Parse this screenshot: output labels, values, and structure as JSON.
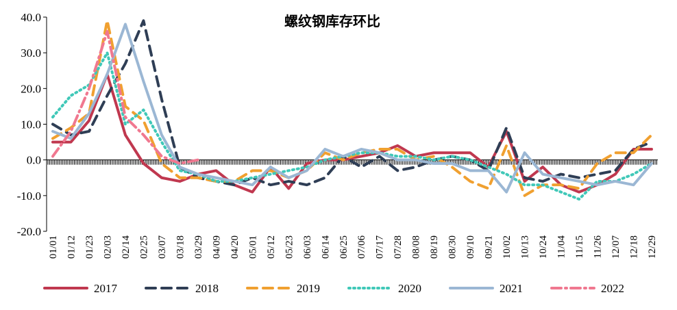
{
  "chart_data": {
    "type": "line",
    "title": "螺纹钢库存环比",
    "xlabel": "",
    "ylabel": "",
    "ylim": [
      -20,
      40
    ],
    "yticks": [
      "40.0",
      "30.0",
      "20.0",
      "10.0",
      "0.0",
      "-10.0",
      "-20.0"
    ],
    "ytick_values": [
      40,
      30,
      20,
      10,
      0,
      -10,
      -20
    ],
    "x_tick_labels": [
      "01/01",
      "01/12",
      "01/23",
      "02/03",
      "02/14",
      "02/25",
      "03/07",
      "03/18",
      "03/29",
      "04/09",
      "04/20",
      "05/01",
      "05/12",
      "05/23",
      "06/03",
      "06/14",
      "06/25",
      "07/06",
      "07/17",
      "07/28",
      "08/08",
      "08/19",
      "08/30",
      "09/10",
      "09/21",
      "10/02",
      "10/13",
      "10/24",
      "11/04",
      "11/15",
      "11/26",
      "12/07",
      "12/18",
      "12/29"
    ],
    "grid": false,
    "legend_position": "bottom",
    "series": [
      {
        "name": "2017",
        "color": "#c0384f",
        "dash": "solid",
        "x": [
          0,
          1,
          2,
          3,
          4,
          5,
          6,
          7,
          8,
          9,
          10,
          11,
          12,
          13,
          14,
          15,
          16,
          17,
          18,
          19,
          20,
          21,
          22,
          23,
          24,
          25,
          26,
          27,
          28,
          29,
          30,
          31,
          32,
          33
        ],
        "values": [
          5,
          5,
          11,
          24,
          7,
          -1,
          -5,
          -6,
          -4,
          -3,
          -7,
          -9,
          -2,
          -8,
          -1,
          0,
          0,
          1,
          2,
          4,
          1,
          2,
          2,
          2,
          -2,
          8,
          -6,
          -2,
          -7,
          -9,
          -7,
          -4,
          3,
          3
        ]
      },
      {
        "name": "2018",
        "color": "#2f3e55",
        "dash": "dash",
        "x": [
          0,
          1,
          2,
          3,
          4,
          5,
          6,
          7,
          8,
          9,
          10,
          11,
          12,
          13,
          14,
          15,
          16,
          17,
          18,
          19,
          20,
          21,
          22,
          23,
          24,
          25,
          26,
          27,
          28,
          29,
          30,
          31,
          32,
          33
        ],
        "values": [
          10,
          7,
          8,
          18,
          27,
          39,
          17,
          -2,
          -5,
          -6,
          -7,
          -5,
          -7,
          -6,
          -7,
          -5,
          1,
          -2,
          1,
          -3,
          -2,
          0,
          1,
          0,
          -3,
          9,
          -5,
          -6,
          -4,
          -5,
          -4,
          -3,
          3,
          5
        ]
      },
      {
        "name": "2019",
        "color": "#f0a030",
        "dash": "dash",
        "x": [
          0,
          1,
          2,
          3,
          4,
          5,
          6,
          7,
          8,
          9,
          10,
          11,
          12,
          13,
          14,
          15,
          16,
          17,
          18,
          19,
          20,
          21,
          22,
          23,
          24,
          25,
          26,
          27,
          28,
          29,
          30,
          31,
          32,
          33
        ],
        "values": [
          6,
          9,
          13,
          39,
          15,
          11,
          -1,
          -5,
          -5,
          -6,
          -6,
          -3,
          -3,
          -5,
          -3,
          2,
          0,
          2,
          3,
          3,
          0,
          1,
          -2,
          -6,
          -8,
          4,
          -10,
          -7,
          -7,
          -8,
          -1,
          2,
          2,
          7
        ]
      },
      {
        "name": "2020",
        "color": "#40c8b8",
        "dash": "dot",
        "x": [
          0,
          1,
          2,
          3,
          4,
          5,
          6,
          7,
          8,
          9,
          10,
          11,
          12,
          13,
          14,
          15,
          16,
          17,
          18,
          19,
          20,
          21,
          22,
          23,
          24,
          25,
          26,
          27,
          28,
          29,
          30,
          31,
          32,
          33
        ],
        "values": [
          12,
          18,
          21,
          30,
          10,
          14,
          5,
          -3,
          -4,
          -6,
          -6,
          -5,
          -4,
          -3,
          -2,
          0,
          1,
          2,
          2,
          1,
          1,
          0,
          1,
          0,
          -2,
          -4,
          -7,
          -7,
          -9,
          -11,
          -6,
          -6,
          -4,
          -1
        ]
      },
      {
        "name": "2021",
        "color": "#9bb7d4",
        "dash": "solid",
        "x": [
          0,
          1,
          2,
          3,
          4,
          5,
          6,
          7,
          8,
          9,
          10,
          11,
          12,
          13,
          14,
          15,
          16,
          17,
          18,
          19,
          20,
          21,
          22,
          23,
          24,
          25,
          26,
          27,
          28,
          29,
          30,
          31,
          32,
          33
        ],
        "values": [
          8,
          6,
          13,
          24,
          38,
          22,
          7,
          -2,
          -4,
          -5,
          -6,
          -7,
          -2,
          -5,
          -3,
          3,
          1,
          3,
          2,
          0,
          0,
          -1,
          -1,
          -3,
          -3,
          -9,
          2,
          -4,
          -5,
          -6,
          -7,
          -6,
          -7,
          -1
        ]
      },
      {
        "name": "2022",
        "color": "#f07890",
        "dash": "dashdot",
        "x": [
          0,
          1,
          2,
          3,
          4,
          5,
          6,
          7,
          8
        ],
        "values": [
          1,
          8,
          20,
          36,
          12,
          7,
          1,
          -1,
          0
        ]
      }
    ]
  }
}
